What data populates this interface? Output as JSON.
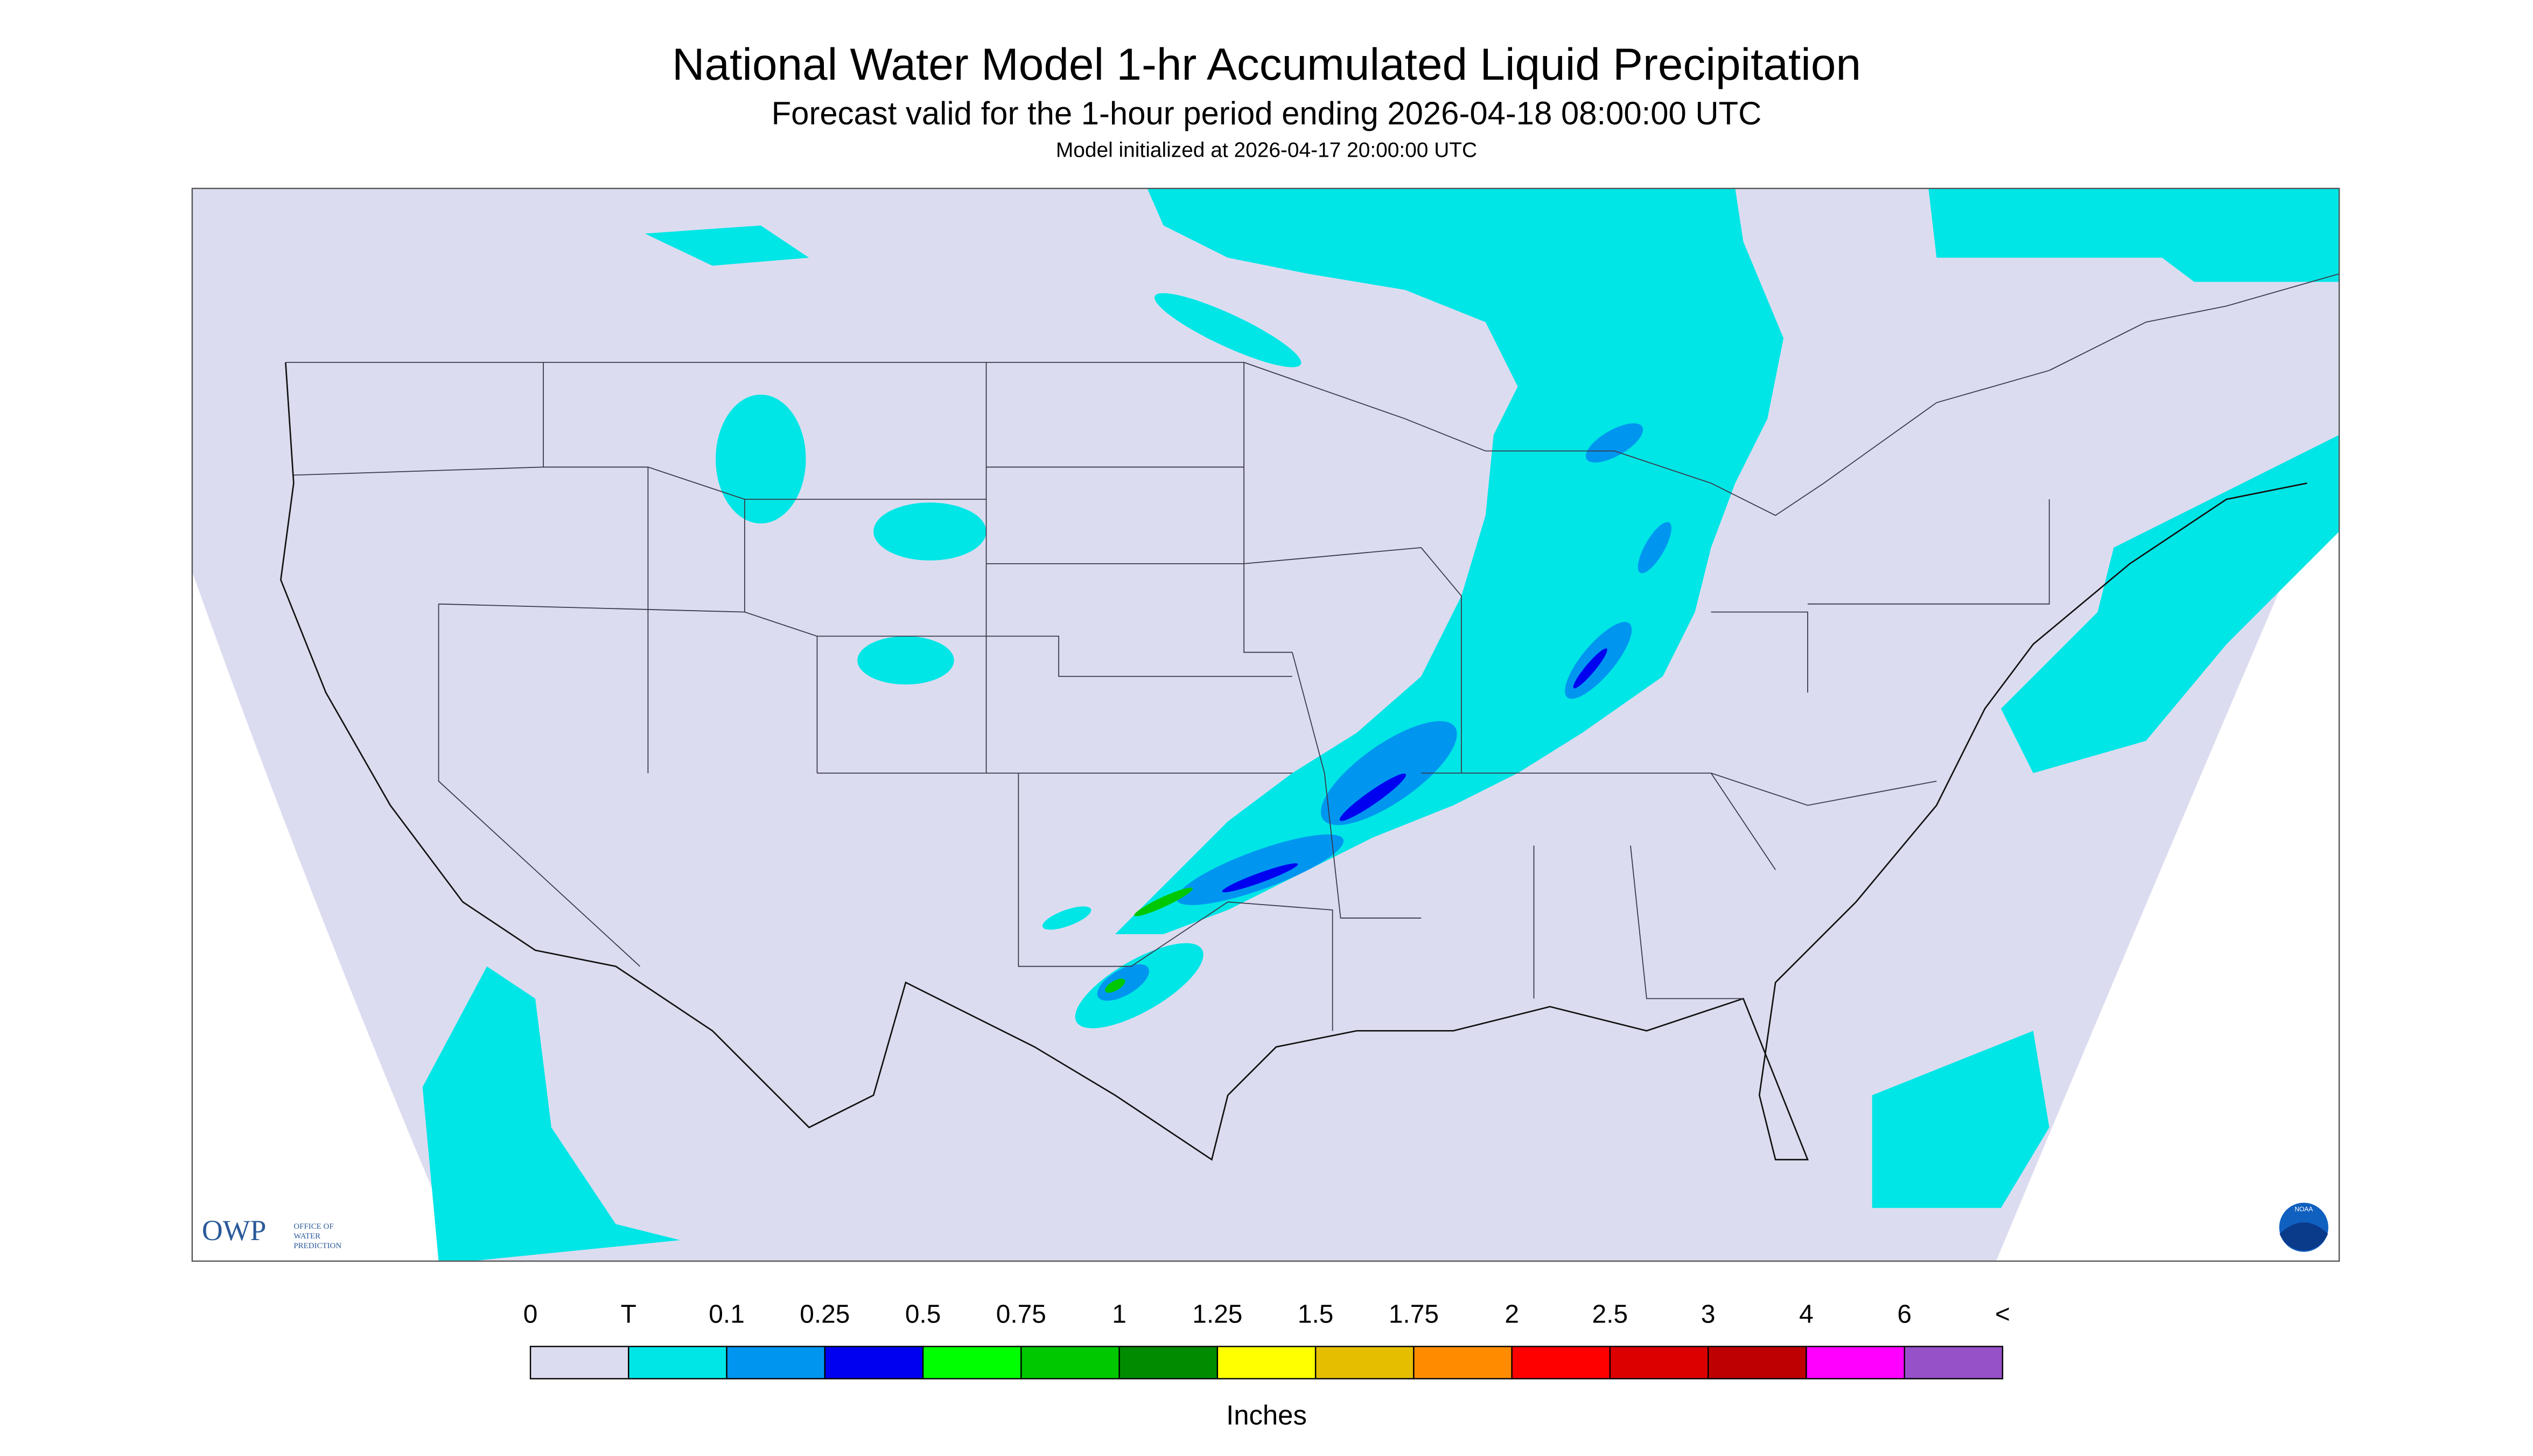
{
  "header": {
    "title": "National Water Model 1-hr Accumulated Liquid Precipitation",
    "subtitle": "Forecast valid for the 1-hour period ending 2026-04-18 08:00:00 UTC",
    "note": "Model initialized at 2026-04-17 20:00:00 UTC"
  },
  "legend": {
    "labels": [
      "0",
      "T",
      "0.1",
      "0.25",
      "0.5",
      "0.75",
      "1",
      "1.25",
      "1.5",
      "1.75",
      "2",
      "2.5",
      "3",
      "4",
      "6",
      "<"
    ],
    "colors": [
      "#dcdcf0",
      "#00e6e6",
      "#0096f0",
      "#0000f0",
      "#00ff00",
      "#00c800",
      "#008c00",
      "#ffff00",
      "#e6be00",
      "#ff8c00",
      "#ff0000",
      "#dc0000",
      "#be0000",
      "#ff00ff",
      "#9650c8"
    ],
    "units": "Inches"
  },
  "logos": {
    "owp": "OWP",
    "owp_name": [
      "OFFICE OF",
      "WATER",
      "PREDICTION"
    ],
    "noaa": "NOAA"
  }
}
